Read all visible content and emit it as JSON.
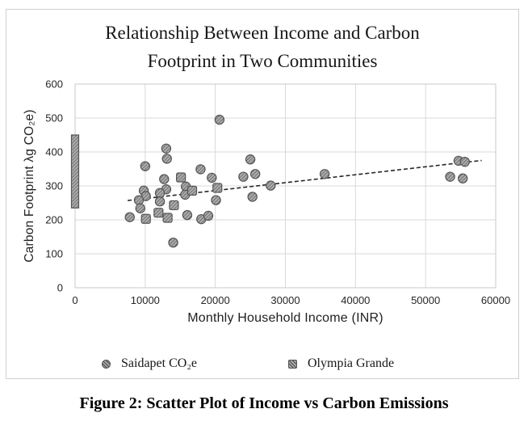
{
  "figure": {
    "caption": "Figure 2: Scatter Plot of Income vs Carbon Emissions"
  },
  "chart_data": {
    "type": "scatter",
    "title": "Relationship Between Income and Carbon Footprint in Two Communities",
    "title_line1": "Relationship Between Income and Carbon",
    "title_line2": "Footprint in Two Communities",
    "xlabel": "Monthly Household Income (INR)",
    "ylabel": "Carbon Footprint λg CO₂e)",
    "xlim": [
      0,
      60000
    ],
    "ylim": [
      0,
      600
    ],
    "x_ticks": [
      0,
      10000,
      20000,
      30000,
      40000,
      50000,
      60000
    ],
    "y_ticks": [
      0,
      100,
      200,
      300,
      400,
      500,
      600
    ],
    "grid": true,
    "legend_position": "bottom",
    "series": [
      {
        "name": "Saidapet CO₂e",
        "marker": "circle",
        "points": [
          [
            20600,
            495
          ],
          [
            13000,
            410
          ],
          [
            13100,
            380
          ],
          [
            25000,
            378
          ],
          [
            10000,
            358
          ],
          [
            17900,
            349
          ],
          [
            25700,
            335
          ],
          [
            24000,
            327
          ],
          [
            19500,
            324
          ],
          [
            12700,
            320
          ],
          [
            27900,
            301
          ],
          [
            15800,
            298
          ],
          [
            13000,
            290
          ],
          [
            9800,
            286
          ],
          [
            12100,
            279
          ],
          [
            15700,
            274
          ],
          [
            10100,
            270
          ],
          [
            9100,
            258
          ],
          [
            12100,
            254
          ],
          [
            20100,
            258
          ],
          [
            25300,
            268
          ],
          [
            9300,
            234
          ],
          [
            7800,
            208
          ],
          [
            16000,
            214
          ],
          [
            18000,
            202
          ],
          [
            19000,
            212
          ],
          [
            14000,
            133
          ],
          [
            35600,
            335
          ],
          [
            53500,
            327
          ],
          [
            55300,
            322
          ],
          [
            54700,
            374
          ],
          [
            55600,
            371
          ]
        ]
      },
      {
        "name": "Olympia Grande",
        "marker": "square",
        "points": [
          [
            15100,
            325
          ],
          [
            16700,
            286
          ],
          [
            20300,
            294
          ],
          [
            14100,
            243
          ],
          [
            11900,
            221
          ],
          [
            10100,
            203
          ],
          [
            13200,
            206
          ]
        ],
        "zero_income_stack": {
          "x": 0,
          "y_from": 235,
          "y_to": 450
        }
      }
    ],
    "trendline": {
      "style": "dashed",
      "from": [
        7500,
        257
      ],
      "to": [
        58000,
        375
      ]
    },
    "colors": {
      "marker_fill_base": "#ababab",
      "marker_hatch": "#474747",
      "marker_stroke": "#555555",
      "grid": "#d9d9d9",
      "plot_border": "#c9c9c9",
      "trend": "#262626",
      "text": "#262626"
    }
  }
}
